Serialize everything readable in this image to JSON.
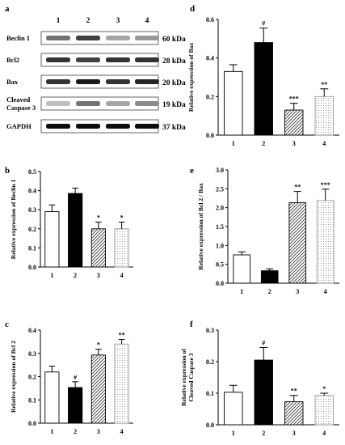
{
  "blot": {
    "panel_label": "a",
    "lanes": [
      "1",
      "2",
      "3",
      "4"
    ],
    "rows": [
      {
        "protein": "Beclin 1",
        "size": "60 kDa",
        "intensity": [
          0.55,
          0.75,
          0.35,
          0.4
        ]
      },
      {
        "protein": "Bcl2",
        "size": "28 kDa",
        "intensity": [
          0.8,
          0.75,
          0.8,
          0.8
        ]
      },
      {
        "protein": "Bax",
        "size": "20 kDa",
        "intensity": [
          0.8,
          0.9,
          0.8,
          0.85
        ]
      },
      {
        "protein": "Cleaved\nCaspase 3",
        "size": "19 kDa",
        "intensity": [
          0.25,
          0.55,
          0.35,
          0.45
        ]
      },
      {
        "protein": "GAPDH",
        "size": "37 kDa",
        "intensity": [
          0.95,
          0.95,
          0.95,
          0.95
        ]
      }
    ]
  },
  "chart_data": [
    {
      "id": "b",
      "panel_label": "b",
      "type": "bar",
      "categories": [
        "1",
        "2",
        "3",
        "4"
      ],
      "values": [
        0.29,
        0.385,
        0.2,
        0.2
      ],
      "errors": [
        0.035,
        0.028,
        0.035,
        0.035
      ],
      "sig": [
        "",
        "",
        "*",
        "*"
      ],
      "ylabel": "Relative expression of Beclin 1",
      "ylim": [
        0,
        0.5
      ],
      "yticks": [
        "0.0",
        "0.1",
        "0.2",
        "0.3",
        "0.4",
        "0.5"
      ],
      "fills": [
        "white",
        "black",
        "hatch",
        "dots"
      ]
    },
    {
      "id": "c",
      "panel_label": "c",
      "type": "bar",
      "categories": [
        "1",
        "2",
        "3",
        "4"
      ],
      "values": [
        0.22,
        0.153,
        0.293,
        0.34
      ],
      "errors": [
        0.025,
        0.025,
        0.025,
        0.02
      ],
      "sig": [
        "",
        "#",
        "*",
        "**"
      ],
      "ylabel": "Relative expression of Bcl 2",
      "ylim": [
        0,
        0.4
      ],
      "yticks": [
        "0.0",
        "0.1",
        "0.2",
        "0.3",
        "0.4"
      ],
      "fills": [
        "white",
        "black",
        "hatch",
        "dots"
      ]
    },
    {
      "id": "d",
      "panel_label": "d",
      "type": "bar",
      "categories": [
        "1",
        "2",
        "3",
        "4"
      ],
      "values": [
        0.33,
        0.48,
        0.13,
        0.2
      ],
      "errors": [
        0.035,
        0.075,
        0.035,
        0.04
      ],
      "sig": [
        "",
        "#",
        "***",
        "**"
      ],
      "ylabel": "Relative expression of Bax",
      "ylim": [
        0,
        0.6
      ],
      "yticks": [
        "0.0",
        "0.2",
        "0.4",
        "0.6"
      ],
      "fills": [
        "white",
        "black",
        "hatch",
        "dots"
      ]
    },
    {
      "id": "e",
      "panel_label": "e",
      "type": "bar",
      "categories": [
        "1",
        "2",
        "3",
        "4"
      ],
      "values": [
        0.75,
        0.33,
        2.13,
        2.19
      ],
      "errors": [
        0.08,
        0.05,
        0.3,
        0.3
      ],
      "sig": [
        "",
        "",
        "**",
        "***"
      ],
      "ylabel": "Relative expression of Bcl 2 / Bax",
      "ylim": [
        0,
        3.0
      ],
      "yticks": [
        "0.0",
        "0.5",
        "1.0",
        "1.5",
        "2.0",
        "2.5",
        "3.0"
      ],
      "fills": [
        "white",
        "black",
        "hatch",
        "dots"
      ]
    },
    {
      "id": "f",
      "panel_label": "f",
      "type": "bar",
      "categories": [
        "1",
        "2",
        "3",
        "4"
      ],
      "values": [
        0.103,
        0.205,
        0.073,
        0.093
      ],
      "errors": [
        0.022,
        0.04,
        0.02,
        0.007
      ],
      "sig": [
        "",
        "#",
        "**",
        "*"
      ],
      "ylabel": "Relative expression of\nCleaved Caspase 3",
      "ylim": [
        0,
        0.3
      ],
      "yticks": [
        "0.0",
        "0.1",
        "0.2",
        "0.3"
      ],
      "fills": [
        "white",
        "black",
        "hatch",
        "dots"
      ]
    }
  ]
}
